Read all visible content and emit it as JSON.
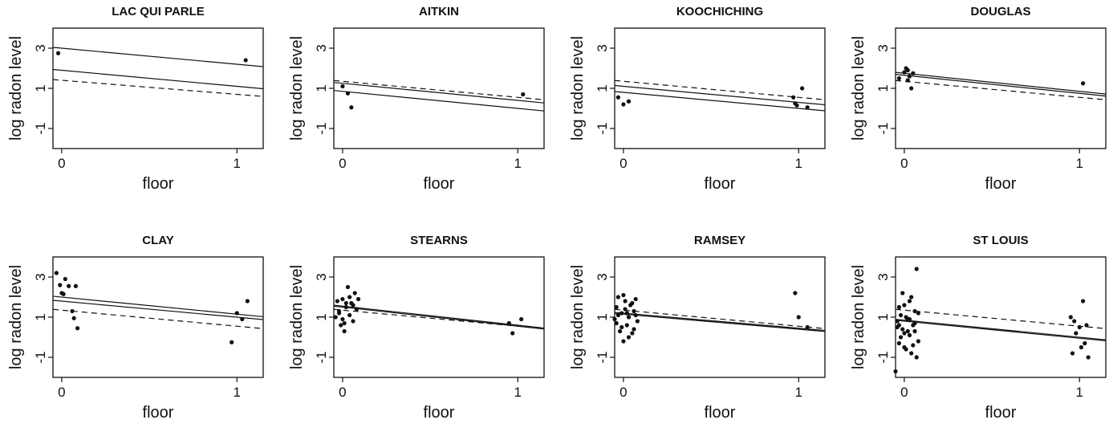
{
  "chart_data": {
    "type": "scatter",
    "layout": {
      "rows": 2,
      "cols": 4
    },
    "xlabel": "floor",
    "ylabel": "log radon level",
    "xlim": [
      -0.05,
      1.15
    ],
    "ylim": [
      -2.0,
      4.0
    ],
    "xticks": [
      0,
      1
    ],
    "yticks": [
      -1,
      1,
      3
    ],
    "panels": [
      {
        "title": "LAC QUI PARLE",
        "points": [
          [
            -0.02,
            2.75
          ],
          [
            1.05,
            2.4
          ]
        ],
        "lines": [
          {
            "style": "solid",
            "y0": 3.0,
            "y1": 2.2
          },
          {
            "style": "solid",
            "y0": 1.9,
            "y1": 1.1
          },
          {
            "style": "dashed",
            "y0": 1.4,
            "y1": 0.7
          }
        ]
      },
      {
        "title": "AITKIN",
        "points": [
          [
            0.0,
            1.1
          ],
          [
            0.03,
            0.75
          ],
          [
            0.05,
            0.05
          ],
          [
            1.03,
            0.7
          ]
        ],
        "lines": [
          {
            "style": "solid",
            "y0": 1.25,
            "y1": 0.4
          },
          {
            "style": "solid",
            "y0": 0.85,
            "y1": 0.0
          },
          {
            "style": "dashed",
            "y0": 1.35,
            "y1": 0.55
          }
        ]
      },
      {
        "title": "KOOCHICHING",
        "points": [
          [
            -0.03,
            0.55
          ],
          [
            0.0,
            0.2
          ],
          [
            0.03,
            0.35
          ],
          [
            0.97,
            0.55
          ],
          [
            0.98,
            0.25
          ],
          [
            1.02,
            1.0
          ],
          [
            1.05,
            0.05
          ],
          [
            0.99,
            0.15
          ]
        ],
        "lines": [
          {
            "style": "solid",
            "y0": 1.1,
            "y1": 0.3
          },
          {
            "style": "solid",
            "y0": 0.8,
            "y1": 0.0
          },
          {
            "style": "dashed",
            "y0": 1.35,
            "y1": 0.55
          }
        ]
      },
      {
        "title": "DOUGLAS",
        "points": [
          [
            -0.03,
            1.5
          ],
          [
            0.0,
            1.8
          ],
          [
            0.01,
            2.0
          ],
          [
            0.02,
            1.9
          ],
          [
            0.03,
            1.6
          ],
          [
            0.05,
            1.75
          ],
          [
            0.04,
            1.0
          ],
          [
            0.02,
            1.4
          ],
          [
            1.02,
            1.25
          ]
        ],
        "lines": [
          {
            "style": "solid",
            "y0": 1.75,
            "y1": 0.85
          },
          {
            "style": "solid",
            "y0": 1.65,
            "y1": 0.75
          },
          {
            "style": "dashed",
            "y0": 1.35,
            "y1": 0.55
          }
        ]
      },
      {
        "title": "CLAY",
        "points": [
          [
            -0.03,
            3.2
          ],
          [
            -0.01,
            2.6
          ],
          [
            0.01,
            2.15
          ],
          [
            0.02,
            2.9
          ],
          [
            0.04,
            2.55
          ],
          [
            0.06,
            1.3
          ],
          [
            0.08,
            2.55
          ],
          [
            0.07,
            0.95
          ],
          [
            0.09,
            0.45
          ],
          [
            0.0,
            2.2
          ],
          [
            0.97,
            -0.25
          ],
          [
            1.0,
            1.2
          ],
          [
            1.03,
            0.9
          ],
          [
            1.06,
            1.8
          ]
        ],
        "lines": [
          {
            "style": "solid",
            "y0": 2.0,
            "y1": 1.15
          },
          {
            "style": "solid",
            "y0": 1.8,
            "y1": 1.0
          },
          {
            "style": "dashed",
            "y0": 1.35,
            "y1": 0.55
          }
        ]
      },
      {
        "title": "STEARNS",
        "points": [
          [
            -0.04,
            1.0
          ],
          [
            -0.03,
            1.8
          ],
          [
            -0.02,
            1.3
          ],
          [
            -0.01,
            0.6
          ],
          [
            0.0,
            1.9
          ],
          [
            0.01,
            0.3
          ],
          [
            0.02,
            1.5
          ],
          [
            0.03,
            2.5
          ],
          [
            0.04,
            1.1
          ],
          [
            0.05,
            1.7
          ],
          [
            0.06,
            0.8
          ],
          [
            0.07,
            2.2
          ],
          [
            0.08,
            1.4
          ],
          [
            0.09,
            1.9
          ],
          [
            -0.02,
            1.2
          ],
          [
            0.0,
            0.9
          ],
          [
            0.02,
            1.7
          ],
          [
            0.04,
            2.0
          ],
          [
            0.06,
            1.6
          ],
          [
            0.01,
            0.7
          ],
          [
            0.95,
            0.7
          ],
          [
            0.97,
            0.2
          ],
          [
            1.02,
            0.9
          ]
        ],
        "lines": [
          {
            "style": "solid",
            "y0": 1.55,
            "y1": 0.6
          },
          {
            "style": "solid",
            "y0": 1.5,
            "y1": 0.55
          },
          {
            "style": "dashed",
            "y0": 1.35,
            "y1": 0.55
          }
        ]
      },
      {
        "title": "RAMSEY",
        "points": [
          [
            -0.05,
            0.9
          ],
          [
            -0.04,
            1.5
          ],
          [
            -0.03,
            2.0
          ],
          [
            -0.02,
            0.3
          ],
          [
            -0.01,
            1.2
          ],
          [
            0.0,
            -0.2
          ],
          [
            0.01,
            1.8
          ],
          [
            0.02,
            0.6
          ],
          [
            0.03,
            1.0
          ],
          [
            0.04,
            1.6
          ],
          [
            0.05,
            0.2
          ],
          [
            0.06,
            1.3
          ],
          [
            0.07,
            1.9
          ],
          [
            0.08,
            0.8
          ],
          [
            -0.03,
            1.1
          ],
          [
            -0.01,
            0.5
          ],
          [
            0.01,
            1.4
          ],
          [
            0.03,
            0.0
          ],
          [
            0.05,
            1.7
          ],
          [
            0.07,
            1.1
          ],
          [
            0.0,
            2.1
          ],
          [
            0.02,
            1.2
          ],
          [
            -0.04,
            0.7
          ],
          [
            0.06,
            0.4
          ],
          [
            0.98,
            2.2
          ],
          [
            1.0,
            1.0
          ],
          [
            1.05,
            0.5
          ]
        ],
        "lines": [
          {
            "style": "solid",
            "y0": 1.2,
            "y1": 0.45
          },
          {
            "style": "solid",
            "y0": 1.15,
            "y1": 0.4
          },
          {
            "style": "dashed",
            "y0": 1.35,
            "y1": 0.55
          }
        ]
      },
      {
        "title": "ST LOUIS",
        "points": [
          [
            -0.05,
            -1.7
          ],
          [
            -0.04,
            0.5
          ],
          [
            -0.03,
            1.5
          ],
          [
            -0.02,
            0.0
          ],
          [
            -0.01,
            2.2
          ],
          [
            0.0,
            -0.5
          ],
          [
            0.01,
            1.0
          ],
          [
            0.02,
            0.3
          ],
          [
            0.03,
            1.8
          ],
          [
            0.04,
            -0.8
          ],
          [
            0.05,
            0.6
          ],
          [
            0.06,
            1.3
          ],
          [
            0.07,
            3.4
          ],
          [
            0.08,
            -0.2
          ],
          [
            -0.04,
            0.8
          ],
          [
            -0.03,
            -0.3
          ],
          [
            -0.02,
            1.1
          ],
          [
            -0.01,
            0.4
          ],
          [
            0.0,
            1.6
          ],
          [
            0.01,
            -0.6
          ],
          [
            0.02,
            0.9
          ],
          [
            0.03,
            0.1
          ],
          [
            0.04,
            2.0
          ],
          [
            0.05,
            -0.4
          ],
          [
            0.06,
            0.7
          ],
          [
            0.07,
            -1.0
          ],
          [
            0.08,
            1.2
          ],
          [
            -0.03,
            0.6
          ],
          [
            0.0,
            0.2
          ],
          [
            0.03,
            0.9
          ],
          [
            0.06,
            0.3
          ],
          [
            0.95,
            1.0
          ],
          [
            0.96,
            -0.8
          ],
          [
            0.98,
            0.2
          ],
          [
            1.0,
            0.5
          ],
          [
            1.02,
            1.8
          ],
          [
            1.03,
            -0.3
          ],
          [
            1.04,
            0.6
          ],
          [
            1.05,
            -1.0
          ],
          [
            0.97,
            0.8
          ],
          [
            1.01,
            -0.5
          ]
        ],
        "lines": [
          {
            "style": "solid",
            "y0": 0.85,
            "y1": 0.0
          },
          {
            "style": "solid",
            "y0": 0.8,
            "y1": -0.05
          },
          {
            "style": "dashed",
            "y0": 1.35,
            "y1": 0.55
          }
        ]
      }
    ]
  }
}
